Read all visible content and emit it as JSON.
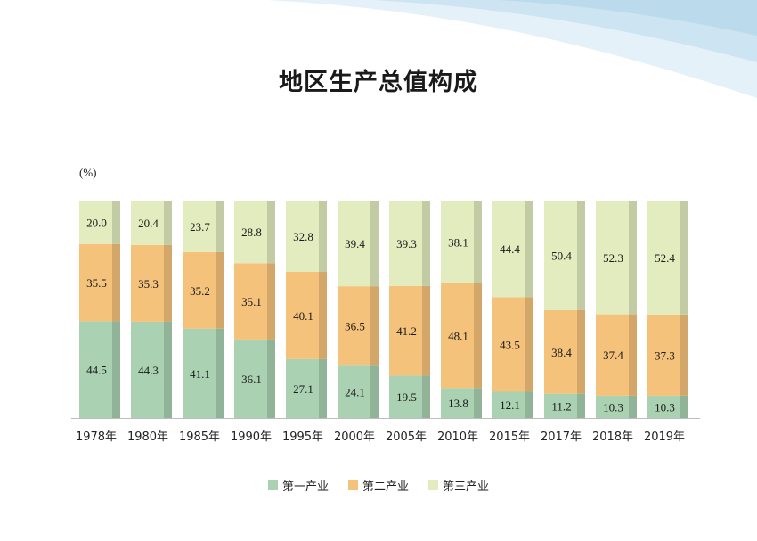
{
  "title": "地区生产总值构成",
  "chart_data": {
    "type": "bar",
    "stacked": true,
    "unit_label": "(%)",
    "categories": [
      "1978年",
      "1980年",
      "1985年",
      "1990年",
      "1995年",
      "2000年",
      "2005年",
      "2010年",
      "2015年",
      "2017年",
      "2018年",
      "2019年"
    ],
    "series": [
      {
        "name": "第一产业",
        "color": "#a9d1b2",
        "values": [
          44.5,
          44.3,
          41.1,
          36.1,
          27.1,
          24.1,
          19.5,
          13.8,
          12.1,
          11.2,
          10.3,
          10.3
        ]
      },
      {
        "name": "第二产业",
        "color": "#f4c27a",
        "values": [
          35.5,
          35.3,
          35.2,
          35.1,
          40.1,
          36.5,
          41.2,
          48.1,
          43.5,
          38.4,
          37.4,
          37.3
        ]
      },
      {
        "name": "第三产业",
        "color": "#e3ecbf",
        "values": [
          20.0,
          20.4,
          23.7,
          28.8,
          32.8,
          39.4,
          39.3,
          38.1,
          44.4,
          50.4,
          52.3,
          52.4
        ]
      }
    ],
    "ylim": [
      0,
      100
    ],
    "legend_position": "bottom",
    "grid": false
  }
}
